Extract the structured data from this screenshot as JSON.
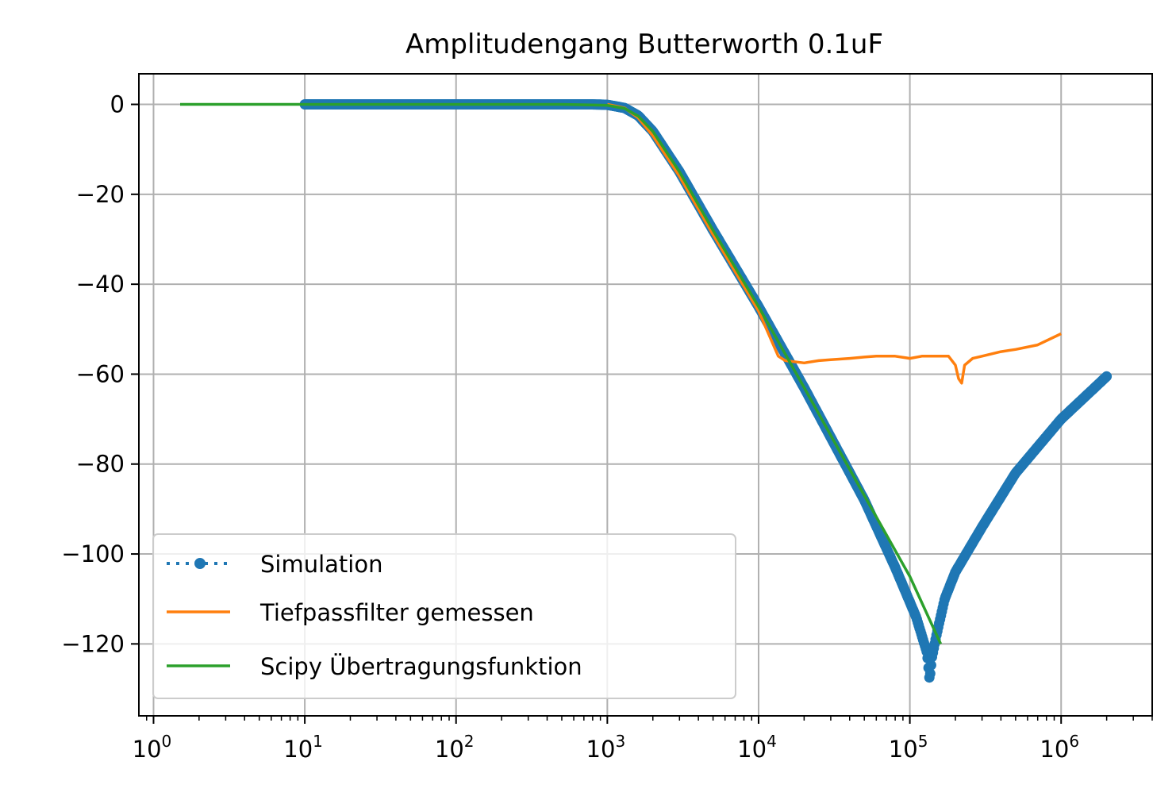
{
  "chart_data": {
    "type": "line",
    "title": "Amplitudengang Butterworth 0.1uF",
    "xlabel": "",
    "ylabel": "",
    "xscale": "log",
    "xlim": [
      0.8,
      4000000
    ],
    "ylim": [
      -136,
      6.8
    ],
    "grid": true,
    "legend_position": "lower-left",
    "x_ticks": [
      {
        "value": 1,
        "base": "10",
        "exp": "0"
      },
      {
        "value": 10,
        "base": "10",
        "exp": "1"
      },
      {
        "value": 100,
        "base": "10",
        "exp": "2"
      },
      {
        "value": 1000,
        "base": "10",
        "exp": "3"
      },
      {
        "value": 10000,
        "base": "10",
        "exp": "4"
      },
      {
        "value": 100000,
        "base": "10",
        "exp": "5"
      },
      {
        "value": 1000000,
        "base": "10",
        "exp": "6"
      }
    ],
    "y_ticks": [
      {
        "value": 0,
        "label": "0"
      },
      {
        "value": -20,
        "label": "−20"
      },
      {
        "value": -40,
        "label": "−40"
      },
      {
        "value": -60,
        "label": "−60"
      },
      {
        "value": -80,
        "label": "−80"
      },
      {
        "value": -100,
        "label": "−100"
      },
      {
        "value": -120,
        "label": "−120"
      }
    ],
    "series": [
      {
        "name": "Simulation",
        "color": "#1f77b4",
        "style": "dotted-markers",
        "x": [
          10,
          30,
          100,
          300,
          800,
          1000,
          1300,
          1600,
          2000,
          3000,
          5000,
          10000,
          20000,
          50000,
          80000,
          110000,
          130000,
          135000,
          140000,
          150000,
          170000,
          200000,
          300000,
          500000,
          1000000,
          2000000
        ],
        "y": [
          0,
          0,
          0,
          0,
          0,
          -0.1,
          -0.8,
          -2.5,
          -6,
          -15,
          -28,
          -45,
          -63,
          -88,
          -103,
          -114,
          -122,
          -128,
          -123,
          -118,
          -110,
          -104,
          -94,
          -82,
          -70,
          -60.5
        ]
      },
      {
        "name": "Tiefpassfilter gemessen",
        "color": "#ff7f0e",
        "style": "line",
        "x": [
          1000,
          1300,
          1600,
          2000,
          3000,
          5000,
          10000,
          13500,
          15000,
          20000,
          25000,
          30000,
          40000,
          50000,
          60000,
          80000,
          100000,
          120000,
          150000,
          180000,
          200000,
          210000,
          220000,
          230000,
          260000,
          300000,
          400000,
          500000,
          700000,
          1000000
        ],
        "y": [
          0,
          -0.8,
          -3,
          -7,
          -16,
          -29,
          -46,
          -56,
          -57,
          -57.5,
          -57,
          -56.8,
          -56.5,
          -56.2,
          -56,
          -56,
          -56.5,
          -56,
          -56,
          -56,
          -58,
          -61,
          -62,
          -58,
          -56.5,
          -56,
          -55,
          -54.5,
          -53.5,
          -51
        ]
      },
      {
        "name": "Scipy Übertragungsfunktion",
        "color": "#2ca02c",
        "style": "line",
        "x": [
          1.5,
          10,
          100,
          500,
          1000,
          1300,
          1600,
          2000,
          3000,
          5000,
          10000,
          20000,
          50000,
          100000,
          160000
        ],
        "y": [
          0,
          0,
          0,
          0,
          -0.2,
          -0.9,
          -2.6,
          -6,
          -15,
          -28,
          -45,
          -63,
          -87,
          -105,
          -120
        ]
      }
    ]
  }
}
